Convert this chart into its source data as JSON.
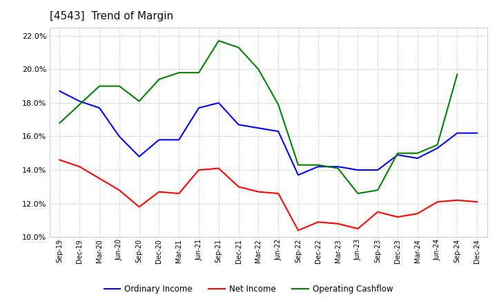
{
  "title": "[4543]  Trend of Margin",
  "x_labels": [
    "Sep-19",
    "Dec-19",
    "Mar-20",
    "Jun-20",
    "Sep-20",
    "Dec-20",
    "Mar-21",
    "Jun-21",
    "Sep-21",
    "Dec-21",
    "Mar-22",
    "Jun-22",
    "Sep-22",
    "Dec-22",
    "Mar-23",
    "Jun-23",
    "Sep-23",
    "Dec-23",
    "Mar-24",
    "Jun-24",
    "Sep-24",
    "Dec-24"
  ],
  "ordinary_income": [
    18.7,
    18.1,
    17.7,
    16.0,
    14.8,
    15.8,
    15.8,
    17.7,
    18.0,
    16.7,
    16.5,
    16.3,
    13.7,
    14.2,
    14.2,
    14.0,
    14.0,
    14.9,
    14.7,
    15.3,
    16.2,
    16.2
  ],
  "net_income": [
    14.6,
    14.2,
    13.5,
    12.8,
    11.8,
    12.7,
    12.6,
    14.0,
    14.1,
    13.0,
    12.7,
    12.6,
    10.4,
    10.9,
    10.8,
    10.5,
    11.5,
    11.2,
    11.4,
    12.1,
    12.2,
    12.1
  ],
  "operating_cashflow": [
    16.8,
    17.9,
    19.0,
    19.0,
    18.1,
    19.4,
    19.8,
    19.8,
    21.7,
    21.3,
    20.0,
    17.9,
    14.3,
    14.3,
    14.1,
    12.6,
    12.8,
    15.0,
    15.0,
    15.5,
    19.7,
    null
  ],
  "ordinary_income_color": "#0000ff",
  "net_income_color": "#ff0000",
  "operating_cashflow_color": "#008000",
  "ylim_min": 10.0,
  "ylim_max": 22.5,
  "yticks": [
    10.0,
    12.0,
    14.0,
    16.0,
    18.0,
    20.0,
    22.0
  ],
  "background_color": "#ffffff",
  "grid_color": "#b0b0b0",
  "title_fontsize": 11,
  "legend_labels": [
    "Ordinary Income",
    "Net Income",
    "Operating Cashflow"
  ]
}
